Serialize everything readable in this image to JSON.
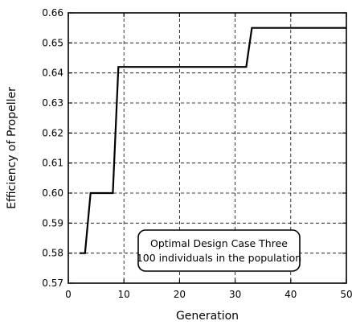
{
  "chart_data": {
    "type": "line",
    "step": true,
    "xlabel": "Generation",
    "ylabel": "Efficiency of Propeller",
    "xlim": [
      0,
      50
    ],
    "ylim": [
      0.57,
      0.66
    ],
    "xticks": [
      0,
      10,
      20,
      30,
      40,
      50
    ],
    "xtick_labels": [
      "0",
      "10",
      "20",
      "30",
      "40",
      "50"
    ],
    "yticks": [
      0.57,
      0.58,
      0.59,
      0.6,
      0.61,
      0.62,
      0.63,
      0.64,
      0.65,
      0.66
    ],
    "ytick_labels": [
      "0.57",
      "0.58",
      "0.59",
      "0.60",
      "0.61",
      "0.62",
      "0.63",
      "0.64",
      "0.65",
      "0.66"
    ],
    "grid": true,
    "series": [
      {
        "x": [
          2,
          3,
          4,
          8,
          9,
          10,
          32,
          33,
          50
        ],
        "y": [
          0.58,
          0.58,
          0.6,
          0.6,
          0.642,
          0.642,
          0.642,
          0.655,
          0.655
        ]
      }
    ],
    "annotation": {
      "lines": [
        "Optimal Design Case Three",
        "100 individuals in the population"
      ]
    }
  }
}
